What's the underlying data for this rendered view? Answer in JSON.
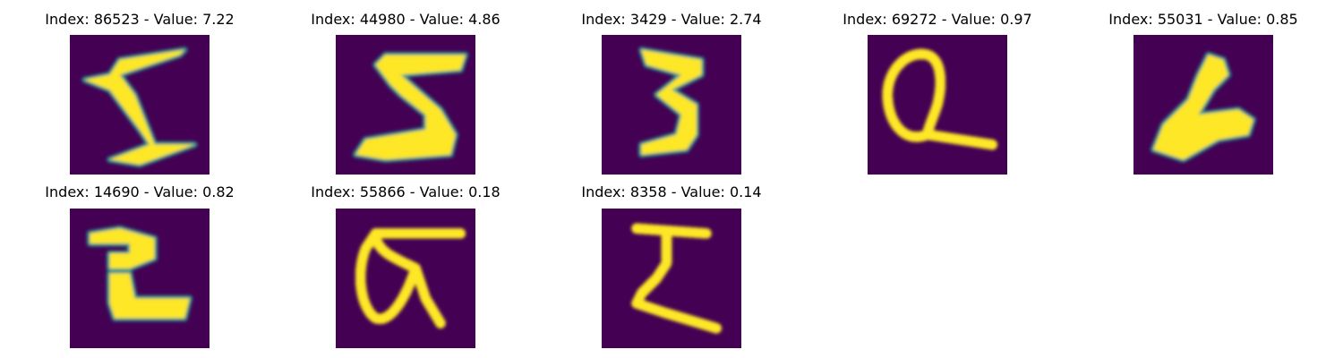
{
  "colors": {
    "background": "#440154",
    "stroke_core": "#fde725",
    "stroke_mid": "#5ec962",
    "stroke_edge": "#21918c"
  },
  "panels": [
    {
      "title": "Index: 86523 - Value: 7.22"
    },
    {
      "title": "Index: 44980 - Value: 4.86"
    },
    {
      "title": "Index: 3429 - Value: 2.74"
    },
    {
      "title": "Index: 69272 - Value: 0.97"
    },
    {
      "title": "Index: 55031 - Value: 0.85"
    },
    {
      "title": "Index: 14690 - Value: 0.82"
    },
    {
      "title": "Index: 55866 - Value: 0.18"
    },
    {
      "title": "Index: 8358 - Value: 0.14"
    }
  ]
}
